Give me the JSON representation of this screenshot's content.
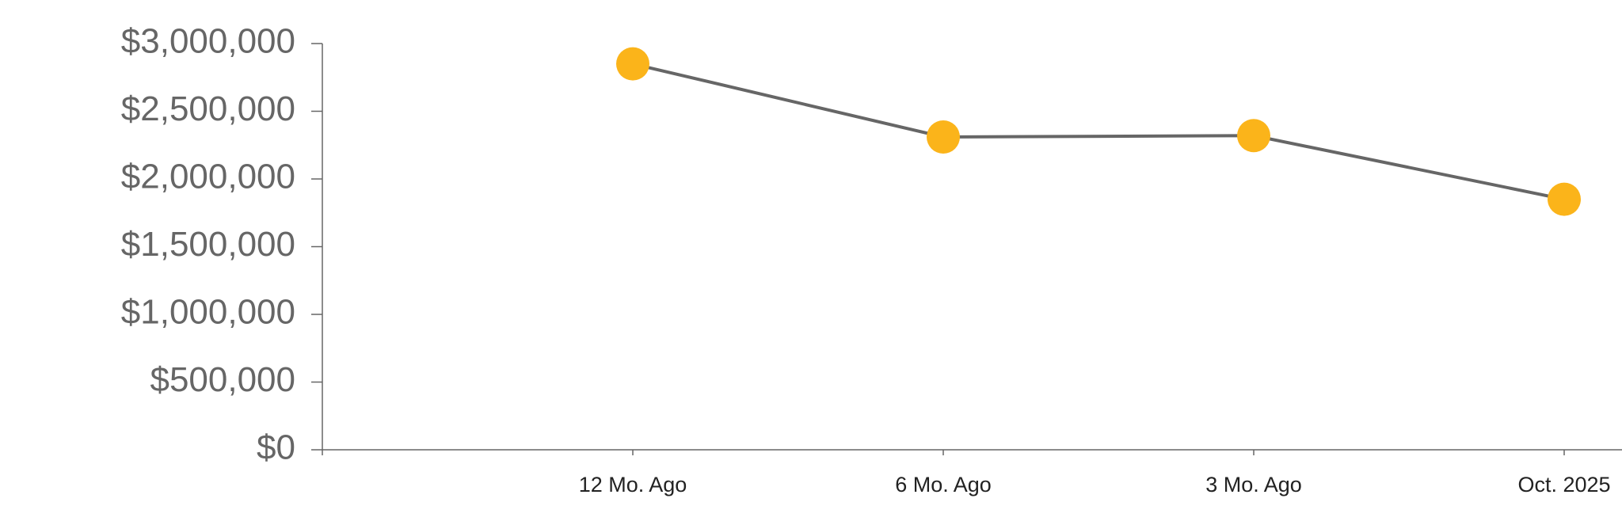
{
  "chart_data": {
    "type": "line",
    "categories": [
      null,
      "12 Mo. Ago",
      "6 Mo. Ago",
      "3 Mo. Ago",
      "Oct. 2025"
    ],
    "series": [
      {
        "values": [
          null,
          2850000,
          2310000,
          2320000,
          1850000
        ],
        "color": "#666666",
        "marker_color": "#fbb41a"
      }
    ],
    "ylim": [
      0,
      3000000
    ],
    "yticks": [
      {
        "value": 0,
        "label": "$0"
      },
      {
        "value": 500000,
        "label": "$500,000"
      },
      {
        "value": 1000000,
        "label": "$1,000,000"
      },
      {
        "value": 1500000,
        "label": "$1,500,000"
      },
      {
        "value": 2000000,
        "label": "$2,000,000"
      },
      {
        "value": 2500000,
        "label": "$2,500,000"
      },
      {
        "value": 3000000,
        "label": "$3,000,000"
      }
    ],
    "grid": false
  }
}
